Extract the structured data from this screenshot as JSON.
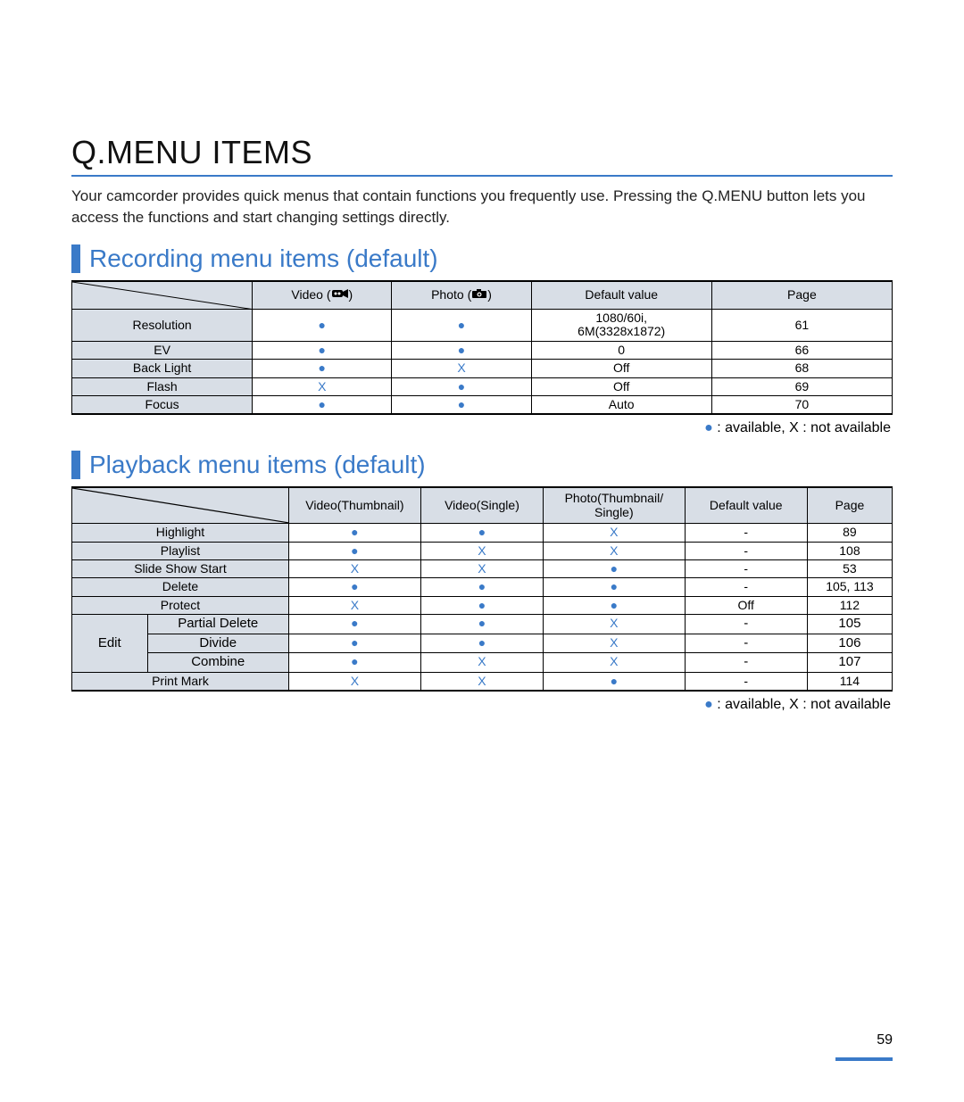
{
  "colors": {
    "accent": "#3a7ac8",
    "header_fill": "#d8dee6",
    "text": "#000000",
    "background": "#ffffff"
  },
  "font": {
    "family": "Arial",
    "title_size_pt": 27,
    "section_size_pt": 21,
    "body_size_pt": 13,
    "table_size_pt": 11,
    "legend_size_pt": 12
  },
  "page_number": "59",
  "title": "Q.MENU ITEMS",
  "intro": "Your camcorder provides quick menus that contain functions you frequently use. Pressing the Q.MENU button lets you access the functions and start changing settings directly.",
  "recording": {
    "title": "Recording menu items (default)",
    "columns": [
      {
        "label": "Video (",
        "icon": "camcorder",
        "suffix": ")"
      },
      {
        "label": "Photo (",
        "icon": "camera",
        "suffix": ")"
      },
      {
        "label": "Default value"
      },
      {
        "label": "Page"
      }
    ],
    "col_widths_pct": [
      22,
      17,
      17,
      22,
      22
    ],
    "rows": [
      {
        "name": "Resolution",
        "video": "●",
        "photo": "●",
        "default": "1080/60i,\n6M(3328x1872)",
        "page": "61"
      },
      {
        "name": "EV",
        "video": "●",
        "photo": "●",
        "default": "0",
        "page": "66"
      },
      {
        "name": "Back Light",
        "video": "●",
        "photo": "X",
        "default": "Off",
        "page": "68"
      },
      {
        "name": "Flash",
        "video": "X",
        "photo": "●",
        "default": "Off",
        "page": "69"
      },
      {
        "name": "Focus",
        "video": "●",
        "photo": "●",
        "default": "Auto",
        "page": "70"
      }
    ],
    "legend": " : available, X : not available"
  },
  "playback": {
    "title": "Playback menu items (default)",
    "columns": [
      "Video(Thumbnail)",
      "Video(Single)",
      "Photo(Thumbnail/\nSingle)",
      "Default value",
      "Page"
    ],
    "col_widths_pct": [
      23,
      14,
      13,
      15,
      13,
      9
    ],
    "edit_label": "Edit",
    "rows": [
      {
        "name": "Highlight",
        "vt": "●",
        "vs": "●",
        "pt": "X",
        "default": "-",
        "page": "89"
      },
      {
        "name": "Playlist",
        "vt": "●",
        "vs": "X",
        "pt": "X",
        "default": "-",
        "page": "108"
      },
      {
        "name": "Slide Show Start",
        "vt": "X",
        "vs": "X",
        "pt": "●",
        "default": "-",
        "page": "53"
      },
      {
        "name": "Delete",
        "vt": "●",
        "vs": "●",
        "pt": "●",
        "default": "-",
        "page": "105, 113"
      },
      {
        "name": "Protect",
        "vt": "X",
        "vs": "●",
        "pt": "●",
        "default": "Off",
        "page": "112"
      }
    ],
    "edit_rows": [
      {
        "name": "Partial Delete",
        "vt": "●",
        "vs": "●",
        "pt": "X",
        "default": "-",
        "page": "105"
      },
      {
        "name": "Divide",
        "vt": "●",
        "vs": "●",
        "pt": "X",
        "default": "-",
        "page": "106"
      },
      {
        "name": "Combine",
        "vt": "●",
        "vs": "X",
        "pt": "X",
        "default": "-",
        "page": "107"
      }
    ],
    "last_row": {
      "name": "Print Mark",
      "vt": "X",
      "vs": "X",
      "pt": "●",
      "default": "-",
      "page": "114"
    },
    "legend": " : available, X : not available"
  }
}
